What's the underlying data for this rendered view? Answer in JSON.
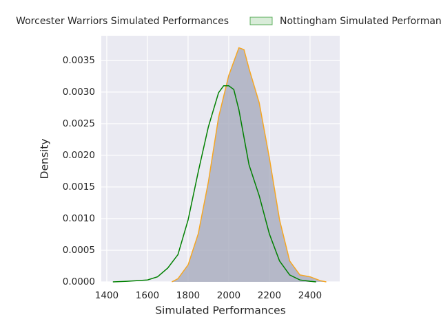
{
  "chart_data": {
    "type": "kde",
    "x_label": "Simulated Performances",
    "y_label": "Density",
    "xlim": [
      1373,
      2546
    ],
    "ylim": [
      0,
      0.00389
    ],
    "xticks": [
      1400,
      1600,
      1800,
      2000,
      2200,
      2400
    ],
    "yticks": [
      {
        "value": 0,
        "label": "0.0000"
      },
      {
        "value": 0.0005,
        "label": "0.0005"
      },
      {
        "value": 0.001,
        "label": "0.0010"
      },
      {
        "value": 0.0015,
        "label": "0.0015"
      },
      {
        "value": 0.002,
        "label": "0.0020"
      },
      {
        "value": 0.0025,
        "label": "0.0025"
      },
      {
        "value": 0.003,
        "label": "0.0030"
      },
      {
        "value": 0.0035,
        "label": "0.0035"
      }
    ],
    "grid": true,
    "series": [
      {
        "name": "Worcester Warriors Simulated Performances",
        "color": "#f5a623",
        "fill_color": "#a3a7ba",
        "x": [
          1720,
          1750,
          1800,
          1850,
          1900,
          1950,
          2000,
          2050,
          2075,
          2100,
          2150,
          2200,
          2250,
          2300,
          2350,
          2400,
          2450,
          2480
        ],
        "values": [
          0,
          5e-05,
          0.00027,
          0.00076,
          0.00158,
          0.0026,
          0.00326,
          0.0037,
          0.00367,
          0.00337,
          0.00283,
          0.00196,
          0.00098,
          0.00033,
          0.00011,
          8e-05,
          2e-05,
          0
        ]
      },
      {
        "name": "Nottingham Simulated Performances",
        "color": "#008000",
        "x": [
          1430,
          1500,
          1600,
          1650,
          1700,
          1750,
          1800,
          1850,
          1900,
          1950,
          1975,
          2000,
          2025,
          2050,
          2100,
          2150,
          2200,
          2250,
          2300,
          2350,
          2400,
          2430
        ],
        "values": [
          0,
          1e-05,
          3e-05,
          8e-05,
          0.00022,
          0.00043,
          0.00098,
          0.00174,
          0.00245,
          0.00299,
          0.0031,
          0.0031,
          0.00304,
          0.00272,
          0.00185,
          0.00136,
          0.00076,
          0.00033,
          0.00011,
          3e-05,
          1e-05,
          0
        ]
      }
    ]
  }
}
